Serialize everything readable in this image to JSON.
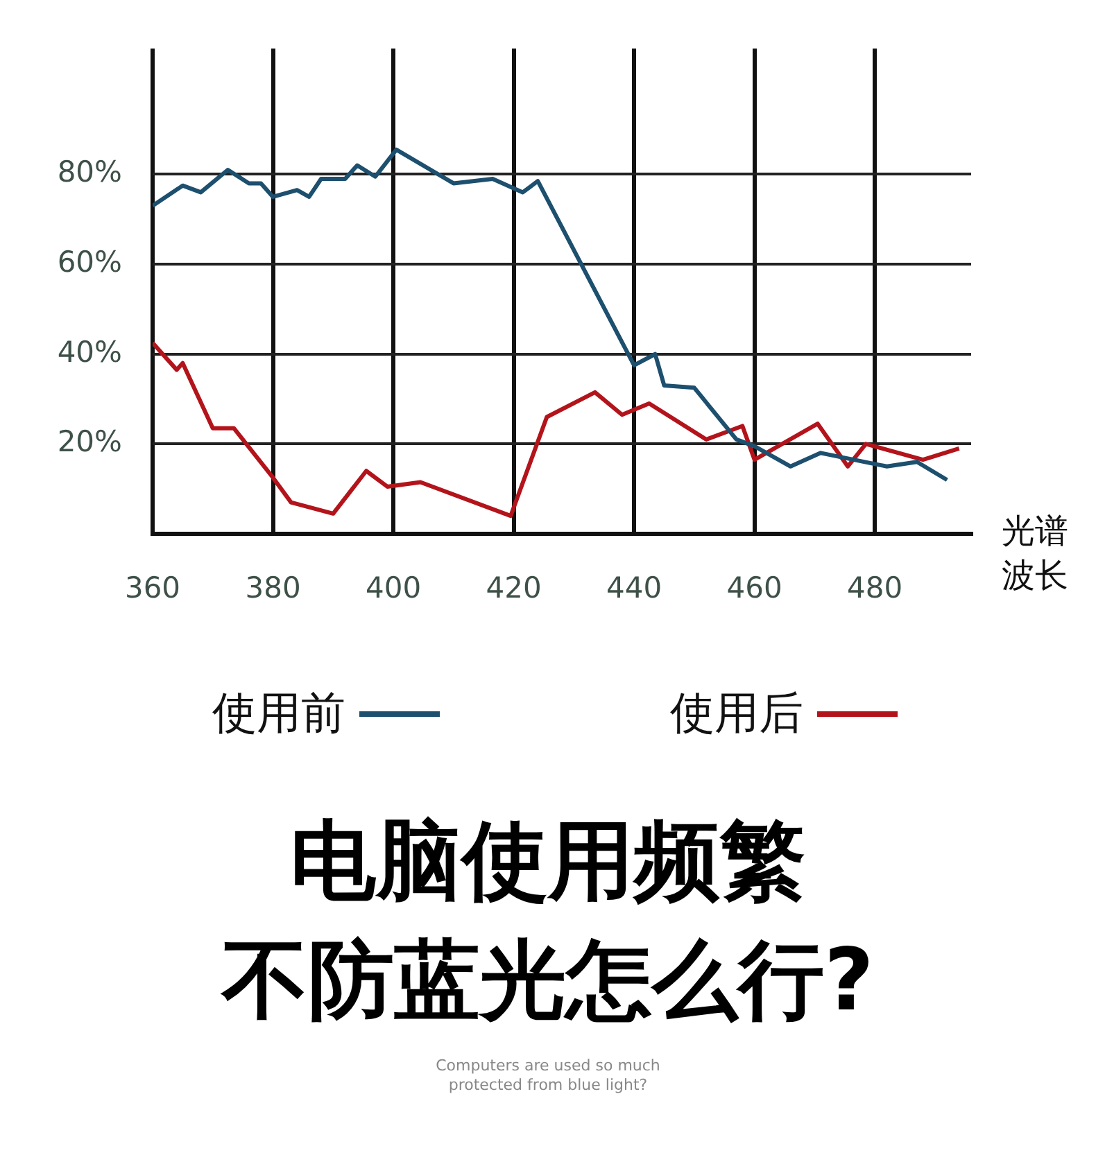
{
  "chart_data": {
    "type": "line",
    "title": "电脑使用频繁",
    "subtitle": "不防蓝光怎么行?",
    "xlabel": "光谱波长",
    "annotations": [
      "Computers are used so much\nprotected from blue light?"
    ],
    "series": [
      {
        "name": "使用前",
        "color": "#1d4f6e",
        "x": [
          360,
          365,
          368,
          372.5,
          376,
          378,
          380,
          384,
          386,
          388,
          392,
          394,
          397,
          400.5,
          410,
          416.5,
          421.5,
          424,
          440,
          443.5,
          445,
          450,
          457,
          460,
          466,
          471,
          482,
          487,
          492
        ],
        "values": [
          73,
          77.5,
          76,
          81,
          78,
          78,
          75,
          76.5,
          75,
          79,
          79,
          82,
          79.5,
          85.5,
          78,
          79,
          76,
          78.5,
          37.5,
          40,
          33,
          32.5,
          21,
          19.5,
          15,
          18,
          15,
          16,
          12
        ]
      },
      {
        "name": "使用后",
        "color": "#b3141b",
        "x": [
          360,
          364,
          365,
          370,
          373.5,
          380,
          383,
          390,
          395.5,
          399,
          404.5,
          419.5,
          425.5,
          433.5,
          438,
          442.5,
          452,
          458,
          460,
          470.5,
          475.5,
          478.5,
          488,
          494
        ],
        "values": [
          42.5,
          36.5,
          38,
          23.5,
          23.5,
          12.5,
          7,
          4.5,
          14,
          10.5,
          11.5,
          4,
          26,
          31.5,
          26.5,
          29,
          21,
          24,
          16.5,
          24.5,
          15,
          20,
          16.5,
          19
        ]
      }
    ],
    "xlim": [
      360,
      496
    ],
    "xticks": [
      360,
      380,
      400,
      420,
      440,
      460,
      480
    ],
    "ylim": [
      0,
      108
    ],
    "yticks": [
      {
        "value": 0,
        "label": null
      },
      {
        "value": 20,
        "label": "20%"
      },
      {
        "value": 40,
        "label": "40%"
      },
      {
        "value": 60,
        "label": "60%"
      },
      {
        "value": 80,
        "label": "80%"
      }
    ],
    "grid": true,
    "legend": "bottom",
    "marker": "none",
    "line_style": "solid"
  }
}
